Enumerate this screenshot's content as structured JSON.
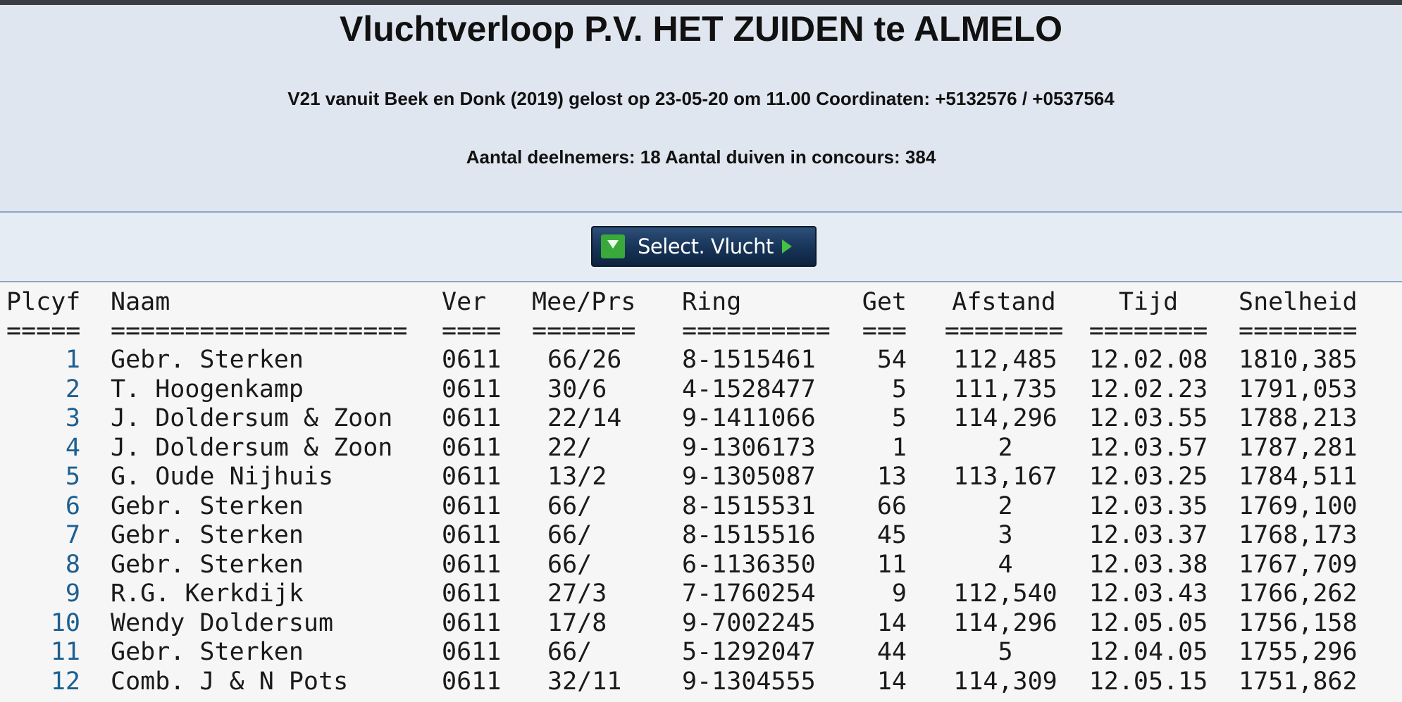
{
  "header": {
    "title": "Vluchtverloop P.V. HET ZUIDEN te ALMELO",
    "subtitle": "V21 vanuit Beek en Donk (2019) gelost op 23-05-20 om 11.00 Coordinaten: +5132576 / +0537564",
    "participants": "Aantal deelnemers: 18 Aantal duiven in concours: 384"
  },
  "button": {
    "label": "Select. Vlucht"
  },
  "table": {
    "columns": [
      {
        "label": "Plcyf",
        "rule": "====="
      },
      {
        "label": "Naam",
        "rule": "===================="
      },
      {
        "label": "Ver",
        "rule": "===="
      },
      {
        "label": "Mee/Prs",
        "rule": "======="
      },
      {
        "label": "Ring",
        "rule": "=========="
      },
      {
        "label": "Get",
        "rule": "==="
      },
      {
        "label": "Afstand",
        "rule": "========"
      },
      {
        "label": "Tijd",
        "rule": "========"
      },
      {
        "label": "Snelheid",
        "rule": "========"
      }
    ],
    "rows": [
      [
        "1",
        "Gebr. Sterken",
        "0611",
        "66/26",
        "8-1515461",
        "54",
        "112,485",
        "12.02.08",
        "1810,385"
      ],
      [
        "2",
        "T. Hoogenkamp",
        "0611",
        "30/6",
        "4-1528477",
        "5",
        "111,735",
        "12.02.23",
        "1791,053"
      ],
      [
        "3",
        "J. Doldersum & Zoon",
        "0611",
        "22/14",
        "9-1411066",
        "5",
        "114,296",
        "12.03.55",
        "1788,213"
      ],
      [
        "4",
        "J. Doldersum & Zoon",
        "0611",
        "22/",
        "9-1306173",
        "1",
        "2",
        "12.03.57",
        "1787,281"
      ],
      [
        "5",
        "G. Oude Nijhuis",
        "0611",
        "13/2",
        "9-1305087",
        "13",
        "113,167",
        "12.03.25",
        "1784,511"
      ],
      [
        "6",
        "Gebr. Sterken",
        "0611",
        "66/",
        "8-1515531",
        "66",
        "2",
        "12.03.35",
        "1769,100"
      ],
      [
        "7",
        "Gebr. Sterken",
        "0611",
        "66/",
        "8-1515516",
        "45",
        "3",
        "12.03.37",
        "1768,173"
      ],
      [
        "8",
        "Gebr. Sterken",
        "0611",
        "66/",
        "6-1136350",
        "11",
        "4",
        "12.03.38",
        "1767,709"
      ],
      [
        "9",
        "R.G. Kerkdijk",
        "0611",
        "27/3",
        "7-1760254",
        "9",
        "112,540",
        "12.03.43",
        "1766,262"
      ],
      [
        "10",
        "Wendy Doldersum",
        "0611",
        "17/8",
        "9-7002245",
        "14",
        "114,296",
        "12.05.05",
        "1756,158"
      ],
      [
        "11",
        "Gebr. Sterken",
        "0611",
        "66/",
        "5-1292047",
        "44",
        "5",
        "12.04.05",
        "1755,296"
      ],
      [
        "12",
        "Comb. J & N Pots",
        "0611",
        "32/11",
        "9-1304555",
        "14",
        "114,309",
        "12.05.15",
        "1751,862"
      ]
    ]
  }
}
